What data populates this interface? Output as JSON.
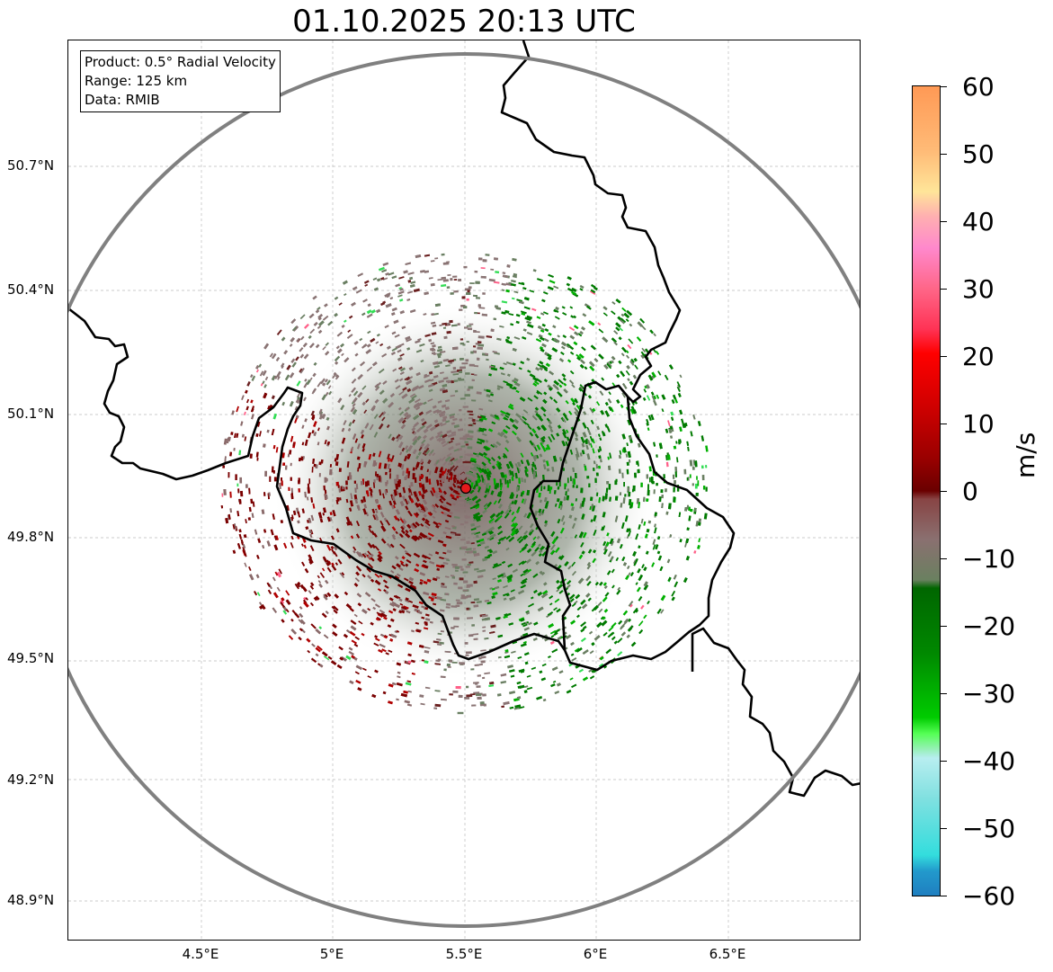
{
  "title": "01.10.2025 20:13 UTC",
  "info_box": {
    "product": "Product: 0.5° Radial Velocity",
    "range": "Range: 125 km",
    "data": "Data: RMIB"
  },
  "lat_labels": [
    "50.7°N",
    "50.4°N",
    "50.1°N",
    "49.8°N",
    "49.5°N",
    "49.2°N",
    "48.9°N"
  ],
  "lon_labels": [
    "4.5°E",
    "5°E",
    "5.5°E",
    "6°E",
    "6.5°E"
  ],
  "colorbar": {
    "unit": "m/s",
    "tick_labels": [
      "60",
      "50",
      "40",
      "30",
      "20",
      "10",
      "0",
      "−10",
      "−20",
      "−30",
      "−40",
      "−50",
      "−60"
    ],
    "range": [
      -60,
      60
    ]
  },
  "colors": {
    "range_ring": "#808080",
    "border": "#000000",
    "radar_site": "#e31a1c",
    "approaching": "#008000",
    "receding": "#7a0000",
    "near_zero": "#8a7070"
  }
}
